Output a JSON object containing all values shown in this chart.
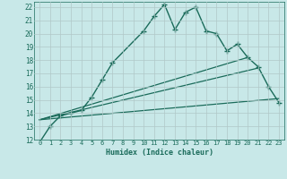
{
  "xlabel": "Humidex (Indice chaleur)",
  "background_color": "#c8e8e8",
  "grid_color": "#b0c8c8",
  "line_color": "#1a6b5a",
  "xlim": [
    -0.5,
    23.5
  ],
  "ylim": [
    12,
    22.4
  ],
  "xticks": [
    0,
    1,
    2,
    3,
    4,
    5,
    6,
    7,
    8,
    9,
    10,
    11,
    12,
    13,
    14,
    15,
    16,
    17,
    18,
    19,
    20,
    21,
    22,
    23
  ],
  "yticks": [
    12,
    13,
    14,
    15,
    16,
    17,
    18,
    19,
    20,
    21,
    22
  ],
  "series": [
    {
      "x": [
        0,
        1,
        2,
        3,
        4,
        5,
        6,
        7,
        10,
        11,
        12,
        13,
        14,
        15,
        16,
        17,
        18,
        19,
        20,
        21,
        22,
        23
      ],
      "y": [
        11.8,
        13.0,
        13.8,
        14.0,
        14.2,
        15.2,
        16.5,
        17.8,
        20.2,
        21.3,
        22.2,
        20.3,
        21.6,
        22.0,
        20.2,
        20.0,
        18.7,
        19.2,
        18.2,
        17.5,
        16.0,
        14.8
      ],
      "marker": "+",
      "markersize": 4.0,
      "linewidth": 1.0
    },
    {
      "x": [
        0,
        20
      ],
      "y": [
        13.5,
        18.2
      ],
      "marker": null,
      "linewidth": 0.9
    },
    {
      "x": [
        0,
        21
      ],
      "y": [
        13.5,
        17.4
      ],
      "marker": null,
      "linewidth": 0.9
    },
    {
      "x": [
        0,
        23
      ],
      "y": [
        13.5,
        15.1
      ],
      "marker": null,
      "linewidth": 0.9
    }
  ]
}
